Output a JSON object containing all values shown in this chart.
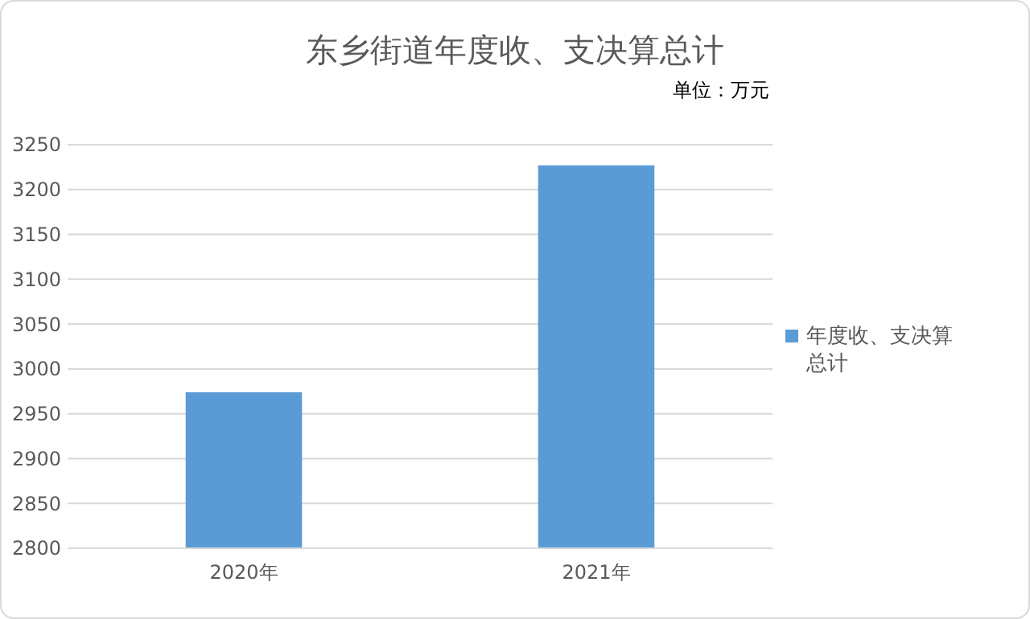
{
  "chart_data": {
    "type": "bar",
    "title": "东乡街道年度收、支决算总计",
    "subtitle": "单位：万元",
    "categories": [
      "2020年",
      "2021年"
    ],
    "series": [
      {
        "name": "年度收、支决算总计",
        "color": "#5b9bd5",
        "values": [
          2974,
          3227
        ]
      }
    ],
    "ylim": [
      2800,
      3250
    ],
    "yticks": [
      2800,
      2850,
      2900,
      2950,
      3000,
      3050,
      3100,
      3150,
      3200,
      3250
    ],
    "grid": "y",
    "legend": "right"
  }
}
